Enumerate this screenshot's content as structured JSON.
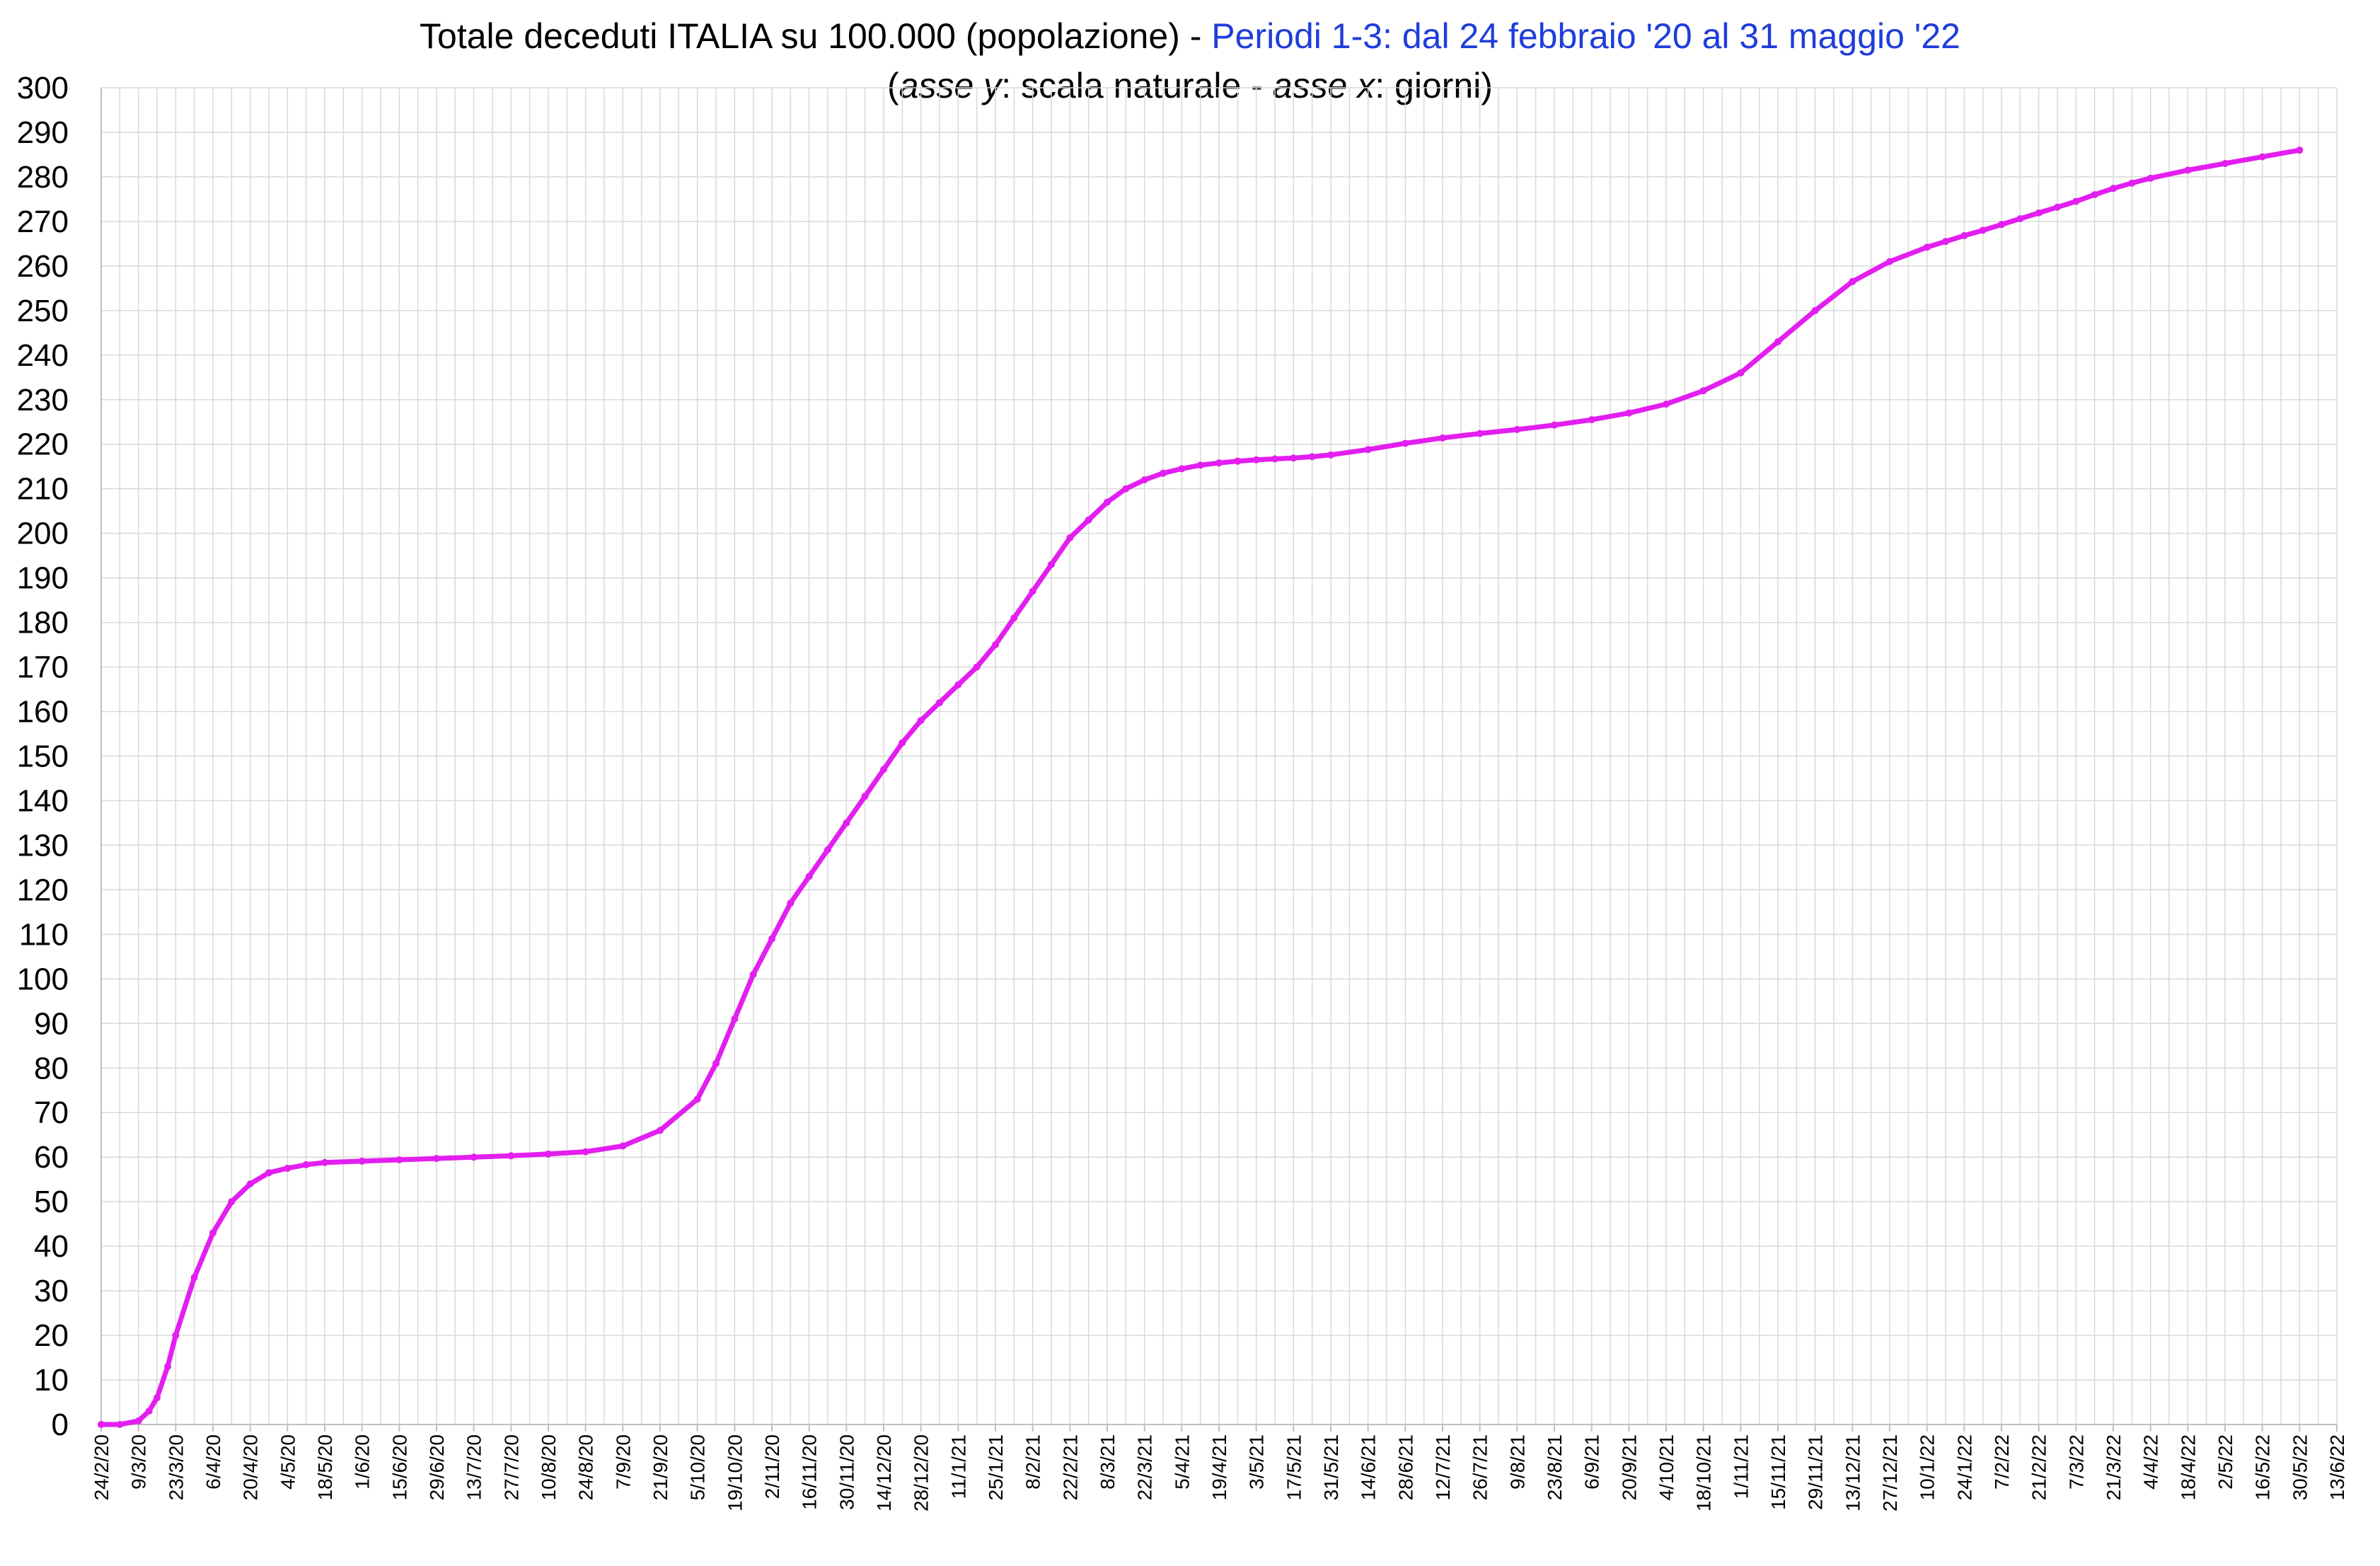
{
  "chart_data": {
    "type": "line",
    "title": {
      "line1_black": "Totale deceduti ITALIA su 100.000 (popolazione) - ",
      "line1_blue": "Periodi 1-3: dal 24 febbraio '20 al 31 maggio '22",
      "line2_open": "(",
      "line2_asse_y": "asse y",
      "line2_mid": ": scala naturale - ",
      "line2_asse_x": "asse x",
      "line2_close": ":  giorni)"
    },
    "xlabel": "",
    "ylabel": "",
    "ylim": [
      0,
      300
    ],
    "x_range_days": [
      0,
      840
    ],
    "y_ticks": [
      0,
      10,
      20,
      30,
      40,
      50,
      60,
      70,
      80,
      90,
      100,
      110,
      120,
      130,
      140,
      150,
      160,
      170,
      180,
      190,
      200,
      210,
      220,
      230,
      240,
      250,
      260,
      270,
      280,
      290,
      300
    ],
    "x_tick_labels": [
      "24/2/20",
      "9/3/20",
      "23/3/20",
      "6/4/20",
      "20/4/20",
      "4/5/20",
      "18/5/20",
      "1/6/20",
      "15/6/20",
      "29/6/20",
      "13/7/20",
      "27/7/20",
      "10/8/20",
      "24/8/20",
      "7/9/20",
      "21/9/20",
      "5/10/20",
      "19/10/20",
      "2/11/20",
      "16/11/20",
      "30/11/20",
      "14/12/20",
      "28/12/20",
      "11/1/21",
      "25/1/21",
      "8/2/21",
      "22/2/21",
      "8/3/21",
      "22/3/21",
      "5/4/21",
      "19/4/21",
      "3/5/21",
      "17/5/21",
      "31/5/21",
      "14/6/21",
      "28/6/21",
      "12/7/21",
      "26/7/21",
      "9/8/21",
      "23/8/21",
      "6/9/21",
      "20/9/21",
      "4/10/21",
      "18/10/21",
      "1/11/21",
      "15/11/21",
      "29/11/21",
      "13/12/21",
      "27/12/21",
      "10/1/22",
      "24/1/22",
      "7/2/22",
      "21/2/22",
      "7/3/22",
      "21/3/22",
      "4/4/22",
      "18/4/22",
      "2/5/22",
      "16/5/22",
      "30/5/22",
      "13/6/22"
    ],
    "grid": true,
    "legend": "none",
    "series": [
      {
        "color": "#e31ef0",
        "x_days": [
          0,
          7,
          14,
          18,
          21,
          25,
          28,
          35,
          42,
          49,
          56,
          63,
          70,
          77,
          84,
          98,
          112,
          126,
          140,
          154,
          168,
          182,
          196,
          210,
          224,
          231,
          238,
          245,
          252,
          259,
          266,
          273,
          280,
          287,
          294,
          301,
          308,
          315,
          322,
          329,
          336,
          343,
          350,
          357,
          364,
          371,
          378,
          385,
          392,
          399,
          406,
          413,
          420,
          427,
          434,
          441,
          448,
          455,
          462,
          476,
          490,
          504,
          518,
          532,
          546,
          560,
          574,
          588,
          602,
          616,
          630,
          644,
          658,
          672,
          686,
          693,
          700,
          707,
          714,
          721,
          728,
          735,
          742,
          749,
          756,
          763,
          770,
          784,
          798,
          812,
          826
        ],
        "y": [
          0,
          0,
          0.8,
          3,
          6,
          13,
          20,
          33,
          43,
          50,
          54,
          56.5,
          57.5,
          58.3,
          58.8,
          59.1,
          59.4,
          59.7,
          60,
          60.3,
          60.7,
          61.2,
          62.5,
          66,
          73,
          81,
          91,
          101,
          109,
          117,
          123,
          129,
          135,
          141,
          147,
          153,
          158,
          162,
          166,
          170,
          175,
          181,
          187,
          193,
          199,
          203,
          207,
          210,
          212,
          213.5,
          214.5,
          215.3,
          215.8,
          216.2,
          216.5,
          216.7,
          216.9,
          217.2,
          217.6,
          218.8,
          220.2,
          221.4,
          222.4,
          223.3,
          224.3,
          225.5,
          227,
          229,
          232,
          236,
          243,
          250,
          256.5,
          261,
          264.2,
          265.5,
          266.8,
          268,
          269.3,
          270.6,
          271.9,
          273.2,
          274.5,
          276,
          277.4,
          278.6,
          279.7,
          281.5,
          283,
          284.5,
          286
        ]
      }
    ]
  }
}
